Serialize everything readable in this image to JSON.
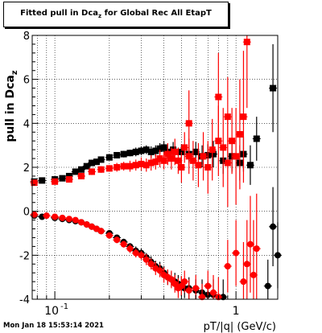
{
  "title_main": "Fitted pull in Dca",
  "title_sub": "z",
  "title_rest": " for Global Rec All EtapT",
  "datestamp": "Mon Jan 18 15:53:14 2021",
  "colors": {
    "series_black": "#000000",
    "series_red": "#ff0000",
    "grid": "#000000"
  },
  "chart_data": {
    "type": "scatter",
    "title": "Fitted pull in Dcaz for Global Rec All EtapT",
    "xlabel": "pT/|q| (GeV/c)",
    "ylabel": "pull in Dcaz",
    "xscale": "log",
    "xlim": [
      0.075,
      1.7
    ],
    "ylim": [
      -4,
      8
    ],
    "x_ticks": [
      {
        "v": 0.1,
        "label": "10",
        "exp": "-1"
      },
      {
        "v": 1,
        "label": "1",
        "exp": ""
      }
    ],
    "y_ticks": [
      -4,
      -2,
      0,
      2,
      4,
      6,
      8
    ],
    "grid": true,
    "series": [
      {
        "color": "#000000",
        "marker": "square",
        "points": [
          [
            0.077,
            1.35
          ],
          [
            0.085,
            1.4
          ],
          [
            0.1,
            1.45
          ],
          [
            0.11,
            1.5
          ],
          [
            0.12,
            1.6
          ],
          [
            0.13,
            1.8
          ],
          [
            0.14,
            1.9
          ],
          [
            0.15,
            2.05
          ],
          [
            0.16,
            2.2
          ],
          [
            0.17,
            2.25
          ],
          [
            0.18,
            2.35
          ],
          [
            0.2,
            2.45
          ],
          [
            0.22,
            2.55
          ],
          [
            0.24,
            2.6
          ],
          [
            0.26,
            2.65
          ],
          [
            0.28,
            2.7
          ],
          [
            0.3,
            2.75
          ],
          [
            0.32,
            2.8
          ],
          [
            0.34,
            2.7
          ],
          [
            0.36,
            2.75
          ],
          [
            0.38,
            2.85
          ],
          [
            0.4,
            2.9
          ],
          [
            0.42,
            2.7
          ],
          [
            0.45,
            2.8
          ],
          [
            0.5,
            2.7
          ],
          [
            0.55,
            2.6
          ],
          [
            0.6,
            2.7
          ],
          [
            0.65,
            2.5
          ],
          [
            0.7,
            2.55
          ],
          [
            0.75,
            2.6
          ],
          [
            0.85,
            2.3
          ],
          [
            0.95,
            2.5
          ],
          [
            1.05,
            2.2
          ],
          [
            1.1,
            2.6
          ],
          [
            1.2,
            2.1
          ],
          [
            1.3,
            3.3
          ]
        ],
        "err": [
          0.1,
          0.1,
          0.1,
          0.1,
          0.1,
          0.1,
          0.1,
          0.1,
          0.1,
          0.1,
          0.1,
          0.12,
          0.12,
          0.15,
          0.15,
          0.2,
          0.2,
          0.2,
          0.25,
          0.25,
          0.25,
          0.3,
          0.3,
          0.35,
          0.35,
          0.4,
          0.45,
          0.5,
          0.5,
          0.6,
          0.6,
          0.7,
          0.8,
          0.8,
          0.9,
          1.0
        ]
      },
      {
        "color": "#000000",
        "marker": "square",
        "points": [
          [
            1.6,
            5.6
          ]
        ],
        "err": [
          2.0
        ]
      },
      {
        "color": "#ff0000",
        "marker": "square",
        "points": [
          [
            0.077,
            1.3
          ],
          [
            0.1,
            1.35
          ],
          [
            0.12,
            1.45
          ],
          [
            0.14,
            1.6
          ],
          [
            0.16,
            1.8
          ],
          [
            0.18,
            1.9
          ],
          [
            0.2,
            1.95
          ],
          [
            0.22,
            2.0
          ],
          [
            0.24,
            2.05
          ],
          [
            0.26,
            2.05
          ],
          [
            0.28,
            2.1
          ],
          [
            0.3,
            2.15
          ],
          [
            0.32,
            2.1
          ],
          [
            0.34,
            2.2
          ],
          [
            0.36,
            2.25
          ],
          [
            0.38,
            2.4
          ],
          [
            0.4,
            2.3
          ],
          [
            0.42,
            2.6
          ],
          [
            0.44,
            2.4
          ],
          [
            0.46,
            2.7
          ],
          [
            0.48,
            2.3
          ],
          [
            0.5,
            2.0
          ],
          [
            0.52,
            2.9
          ],
          [
            0.55,
            2.5
          ],
          [
            0.58,
            2.3
          ],
          [
            0.62,
            2.1
          ],
          [
            0.66,
            2.5
          ],
          [
            0.7,
            2.0
          ],
          [
            0.74,
            2.8
          ],
          [
            0.8,
            3.2
          ],
          [
            0.85,
            2.9
          ],
          [
            0.9,
            2.2
          ],
          [
            1.0,
            2.5
          ],
          [
            1.05,
            3.5
          ],
          [
            1.1,
            4.3
          ],
          [
            1.15,
            7.7
          ]
        ],
        "err": [
          0.1,
          0.1,
          0.1,
          0.12,
          0.15,
          0.15,
          0.15,
          0.2,
          0.2,
          0.25,
          0.25,
          0.3,
          0.3,
          0.35,
          0.35,
          0.4,
          0.4,
          0.5,
          0.5,
          0.6,
          0.6,
          0.7,
          0.7,
          0.8,
          0.9,
          1.0,
          1.1,
          1.2,
          1.4,
          1.6,
          1.8,
          2.0,
          2.2,
          2.5,
          3.0,
          3.0
        ]
      },
      {
        "color": "#ff0000",
        "marker": "square",
        "points": [
          [
            0.55,
            4.0
          ],
          [
            0.8,
            5.2
          ],
          [
            0.9,
            4.3
          ],
          [
            0.95,
            3.2
          ]
        ],
        "err": [
          1.5,
          2.0,
          1.8,
          1.5
        ]
      },
      {
        "color": "#000000",
        "marker": "circle",
        "points": [
          [
            0.077,
            -0.2
          ],
          [
            0.085,
            -0.25
          ],
          [
            0.1,
            -0.3
          ],
          [
            0.11,
            -0.35
          ],
          [
            0.12,
            -0.4
          ],
          [
            0.13,
            -0.45
          ],
          [
            0.14,
            -0.5
          ],
          [
            0.15,
            -0.6
          ],
          [
            0.16,
            -0.7
          ],
          [
            0.17,
            -0.8
          ],
          [
            0.18,
            -0.9
          ],
          [
            0.2,
            -1.0
          ],
          [
            0.22,
            -1.2
          ],
          [
            0.24,
            -1.4
          ],
          [
            0.26,
            -1.6
          ],
          [
            0.28,
            -1.8
          ],
          [
            0.3,
            -1.9
          ],
          [
            0.32,
            -2.1
          ],
          [
            0.34,
            -2.3
          ],
          [
            0.36,
            -2.5
          ],
          [
            0.38,
            -2.6
          ],
          [
            0.4,
            -2.8
          ],
          [
            0.42,
            -3.0
          ],
          [
            0.44,
            -3.1
          ],
          [
            0.46,
            -3.2
          ],
          [
            0.48,
            -3.3
          ],
          [
            0.5,
            -3.4
          ],
          [
            0.52,
            -3.5
          ],
          [
            0.55,
            -3.5
          ],
          [
            0.6,
            -3.6
          ],
          [
            0.65,
            -3.7
          ],
          [
            0.7,
            -3.8
          ],
          [
            0.75,
            -3.8
          ],
          [
            0.85,
            -3.9
          ],
          [
            1.5,
            -3.4
          ],
          [
            1.6,
            -0.7
          ],
          [
            1.7,
            -2.0
          ]
        ],
        "err": [
          0.08,
          0.08,
          0.08,
          0.08,
          0.08,
          0.1,
          0.1,
          0.1,
          0.1,
          0.1,
          0.1,
          0.12,
          0.12,
          0.15,
          0.15,
          0.2,
          0.2,
          0.2,
          0.25,
          0.25,
          0.3,
          0.3,
          0.35,
          0.35,
          0.4,
          0.4,
          0.45,
          0.45,
          0.5,
          0.5,
          0.6,
          0.6,
          0.7,
          0.8,
          1.2,
          1.8,
          1.5
        ]
      },
      {
        "color": "#ff0000",
        "marker": "circle",
        "points": [
          [
            0.077,
            -0.15
          ],
          [
            0.09,
            -0.2
          ],
          [
            0.1,
            -0.25
          ],
          [
            0.11,
            -0.3
          ],
          [
            0.12,
            -0.35
          ],
          [
            0.13,
            -0.4
          ],
          [
            0.14,
            -0.5
          ],
          [
            0.15,
            -0.6
          ],
          [
            0.16,
            -0.7
          ],
          [
            0.17,
            -0.8
          ],
          [
            0.18,
            -0.9
          ],
          [
            0.2,
            -1.1
          ],
          [
            0.22,
            -1.3
          ],
          [
            0.24,
            -1.5
          ],
          [
            0.26,
            -1.7
          ],
          [
            0.28,
            -1.9
          ],
          [
            0.3,
            -2.0
          ],
          [
            0.32,
            -2.2
          ],
          [
            0.34,
            -2.4
          ],
          [
            0.36,
            -2.6
          ],
          [
            0.38,
            -2.7
          ],
          [
            0.4,
            -2.9
          ],
          [
            0.42,
            -3.0
          ],
          [
            0.44,
            -3.1
          ],
          [
            0.46,
            -3.3
          ],
          [
            0.48,
            -3.5
          ],
          [
            0.5,
            -3.4
          ],
          [
            0.52,
            -3.2
          ],
          [
            0.55,
            -3.6
          ],
          [
            0.6,
            -3.5
          ],
          [
            0.65,
            -3.9
          ],
          [
            0.7,
            -3.4
          ],
          [
            0.75,
            -3.7
          ],
          [
            0.8,
            -3.9
          ],
          [
            0.9,
            -2.5
          ],
          [
            1.0,
            -1.9
          ],
          [
            1.1,
            -3.2
          ],
          [
            1.15,
            -2.4
          ],
          [
            1.2,
            -1.5
          ],
          [
            1.25,
            -2.9
          ],
          [
            1.3,
            -1.7
          ]
        ],
        "err": [
          0.08,
          0.08,
          0.08,
          0.08,
          0.08,
          0.1,
          0.1,
          0.1,
          0.1,
          0.1,
          0.12,
          0.12,
          0.15,
          0.15,
          0.2,
          0.2,
          0.2,
          0.25,
          0.25,
          0.3,
          0.3,
          0.35,
          0.35,
          0.4,
          0.4,
          0.45,
          0.45,
          0.5,
          0.5,
          0.6,
          0.6,
          0.7,
          0.8,
          0.9,
          1.2,
          1.5,
          1.8,
          2.0,
          2.2,
          2.5,
          2.5
        ]
      }
    ]
  }
}
